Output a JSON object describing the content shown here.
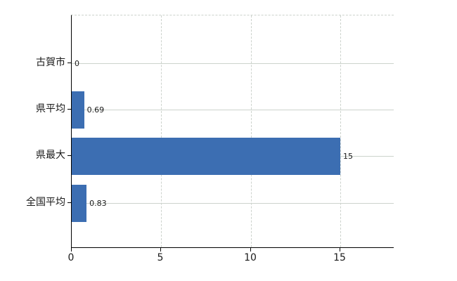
{
  "chart_data": {
    "type": "bar",
    "orientation": "horizontal",
    "categories": [
      "古賀市",
      "県平均",
      "県最大",
      "全国平均"
    ],
    "values": [
      0,
      0.69,
      15,
      0.83
    ],
    "value_labels": [
      "0",
      "0.69",
      "15",
      "0.83"
    ],
    "x_ticks": [
      "0",
      "5",
      "10",
      "15"
    ],
    "xlim": [
      0,
      18
    ],
    "grid": true,
    "legend_position": "none",
    "bar_color": "#3c6eb2",
    "hgrid_color": "#ccd3cc",
    "vgrid_color": "#ccd2cc",
    "axis_color": "#000000",
    "text_color": "#1a1a1a",
    "background_color": "#ffffff"
  }
}
